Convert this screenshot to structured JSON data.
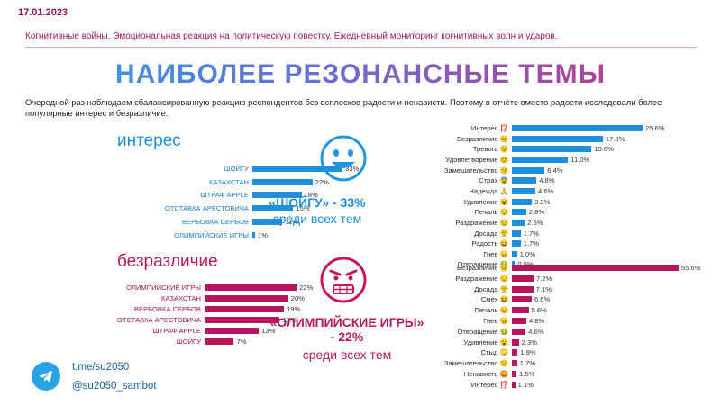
{
  "header": {
    "date": "17.01.2023",
    "subtitle": "Когнитивные войны. Эмоциональная реакция на политическую повестку. Ежедневный мониторинг когнитивных волн и ударов."
  },
  "title": "НАИБОЛЕЕ РЕЗОНАНСНЫЕ ТЕМЫ",
  "intro": "Очередной раз наблюдаем сбалансированную реакцию респондентов без всплесков радости и ненависти. Поэтому в отчёте  вместо радости исследовали более популярные интерес и безразличие.",
  "sections": {
    "interest_title": "интерес",
    "indifference_title": "безразличие"
  },
  "callouts": {
    "interest": {
      "topic": "«ШОЙГУ» - 33%",
      "caption": "среди всех тем"
    },
    "indifference": {
      "topic": "«ОЛИМПИЙСКИЕ ИГРЫ»",
      "value": "- 22%",
      "caption": "среди всех тем"
    }
  },
  "footer": {
    "link": "t.me/su2050",
    "handle": "@su2050_sambot"
  },
  "colors": {
    "blue": "#1f8fdc",
    "pink": "#b8165c"
  },
  "chart_data": [
    {
      "type": "bar",
      "title": "интерес",
      "categories": [
        "ШОЙГУ",
        "КАЗАХСТАН",
        "ШТРАФ APPLE",
        "ОТСТАВКА АРЕСТОВИЧА",
        "ВЕРБОВКА СЕРБОВ",
        "ОЛИМПИЙСКИЕ ИГРЫ"
      ],
      "values": [
        33,
        22,
        18,
        15,
        11,
        1
      ],
      "value_labels": [
        "33%",
        "22%",
        "18%",
        "15%",
        "11%",
        "1%"
      ],
      "max": 33
    },
    {
      "type": "bar",
      "title": "безразличие",
      "categories": [
        "ОЛИМПИЙСКИЕ ИГРЫ",
        "КАЗАХСТАН",
        "ВЕРБОВКА СЕРБОВ",
        "ОТСТАВКА АРЕСТОВИЧА",
        "ШТРАФ APPLE",
        "ШОЙГУ"
      ],
      "values": [
        22,
        20,
        19,
        18,
        13,
        7
      ],
      "value_labels": [
        "22%",
        "20%",
        "19%",
        "18%",
        "13%",
        "7%"
      ],
      "max": 33
    },
    {
      "type": "bar",
      "categories": [
        "Интерес ⁉️",
        "Безразличие 😐",
        "Тревога 😟",
        "Удовлетворение 😊",
        "Замешательство 😕",
        "Страх 😨",
        "Надежда 🙏",
        "Удивление 😮",
        "Печаль 😔",
        "Раздражение 😒",
        "Досада 😤",
        "Радость 😄",
        "Гнев 😠",
        "Отвращение 🤢"
      ],
      "values": [
        25.6,
        17.8,
        15.6,
        11.0,
        6.4,
        4.8,
        4.6,
        3.9,
        2.8,
        2.5,
        1.7,
        1.7,
        1.0,
        0.6
      ],
      "value_labels": [
        "25.6%",
        "17.8%",
        "15.6%",
        "11.0%",
        "6.4%",
        "4.8%",
        "4.6%",
        "3.9%",
        "2.8%",
        "2.5%",
        "1.7%",
        "1.7%",
        "1.0%",
        "0.6%"
      ],
      "max": 25.6
    },
    {
      "type": "bar",
      "categories": [
        "Безразличие 😐",
        "Раздражение 😒",
        "Досада 😤",
        "Смех 😆",
        "Печаль 😔",
        "Гнев 😠",
        "Отвращение 🤢",
        "Удивление 😮",
        "Стыд 😳",
        "Замешательство 😕",
        "Ненависть 😡",
        "Интерес ⁉️"
      ],
      "values": [
        55.6,
        7.2,
        7.1,
        6.6,
        5.6,
        4.8,
        4.6,
        2.3,
        1.9,
        1.7,
        1.5,
        1.1
      ],
      "value_labels": [
        "55.6%",
        "7.2%",
        "7.1%",
        "6.6%",
        "5.6%",
        "4.8%",
        "4.6%",
        "2.3%",
        "1.9%",
        "1.7%",
        "1.5%",
        "1.1%"
      ],
      "max": 55.6
    }
  ]
}
